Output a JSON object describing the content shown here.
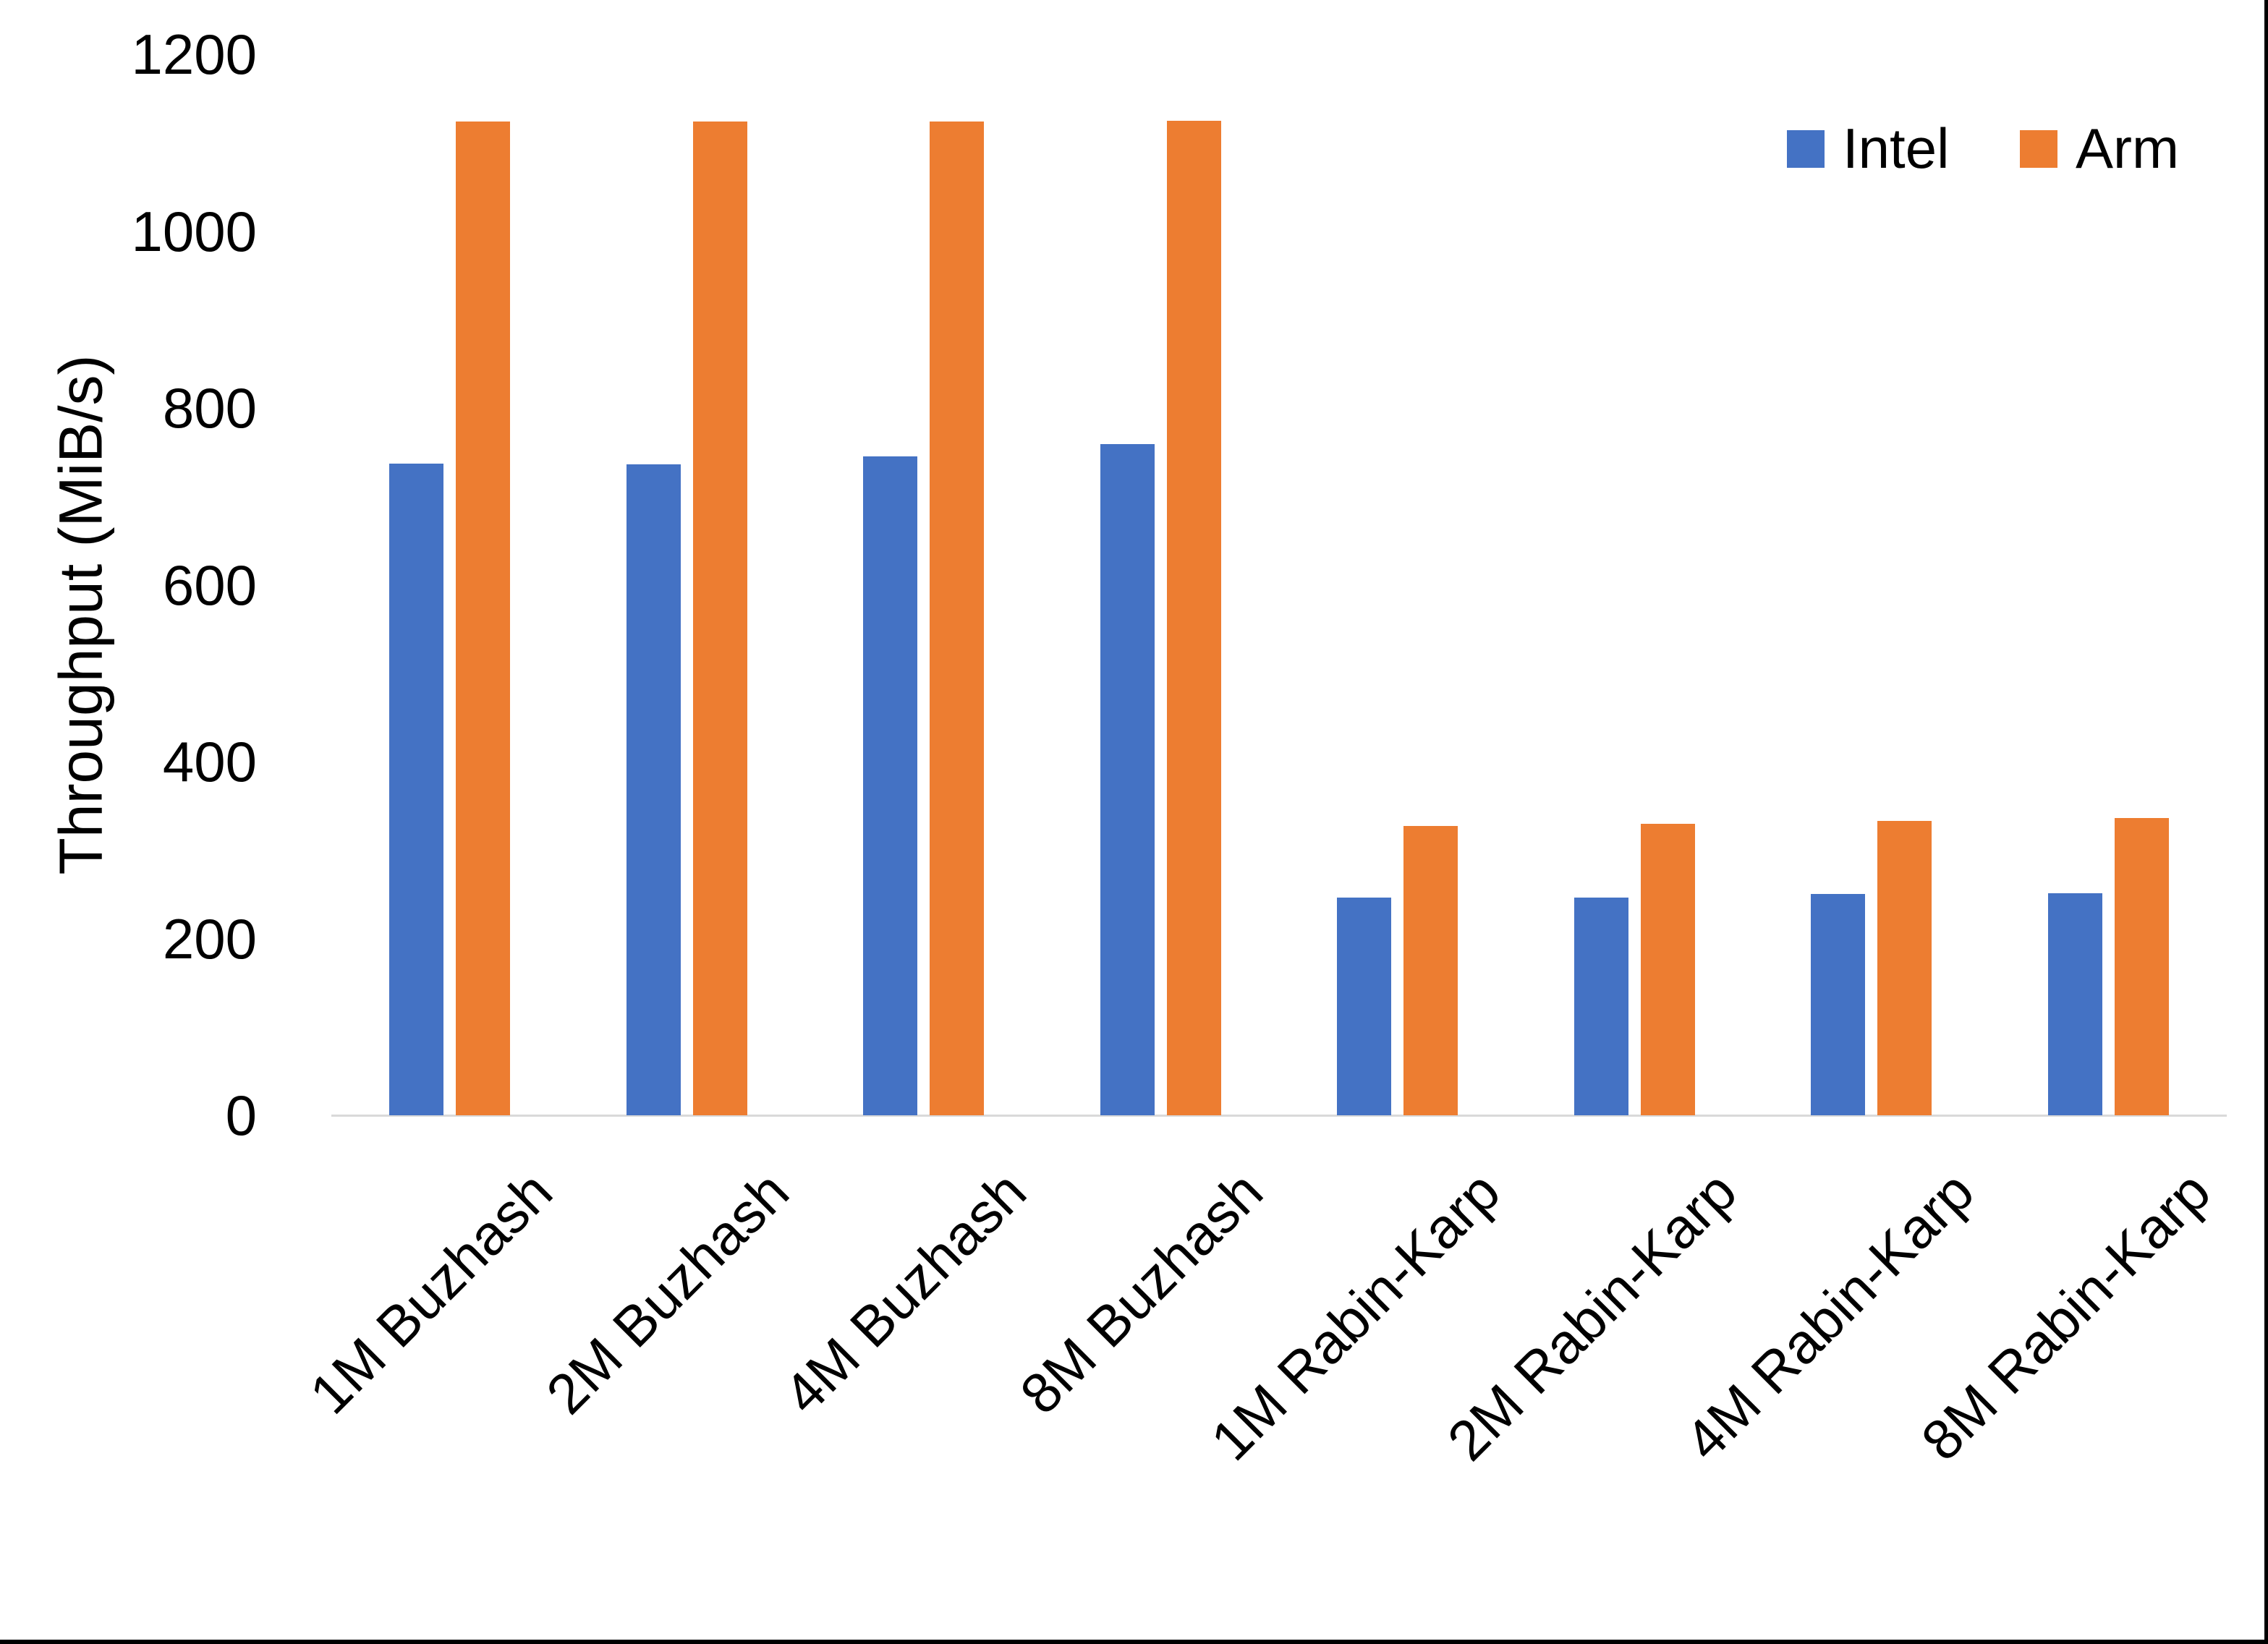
{
  "chart_data": {
    "type": "bar",
    "title": "",
    "xlabel": "",
    "ylabel": "Throughput (MiB/s)",
    "categories": [
      "1M Buzhash",
      "2M Buzhash",
      "4M Buzhash",
      "8M Buzhash",
      "1M Rabin-Karp",
      "2M Rabin-Karp",
      "4M Rabin-Karp",
      "8M Rabin-Karp"
    ],
    "series": [
      {
        "name": "Intel",
        "color": "#4472C4",
        "values": [
          737,
          736,
          745,
          759,
          246,
          246,
          250,
          251
        ]
      },
      {
        "name": "Arm",
        "color": "#ED7D31",
        "values": [
          1124,
          1124,
          1124,
          1125,
          327,
          330,
          333,
          336
        ]
      }
    ],
    "y_ticks": [
      0,
      200,
      400,
      600,
      800,
      1000,
      1200
    ],
    "ylim": [
      0,
      1200
    ],
    "grid": false,
    "legend_position": "top-right",
    "axis_line_color": "#D9D9D9",
    "text_color": "#000000",
    "background_color": "#FFFFFF"
  }
}
